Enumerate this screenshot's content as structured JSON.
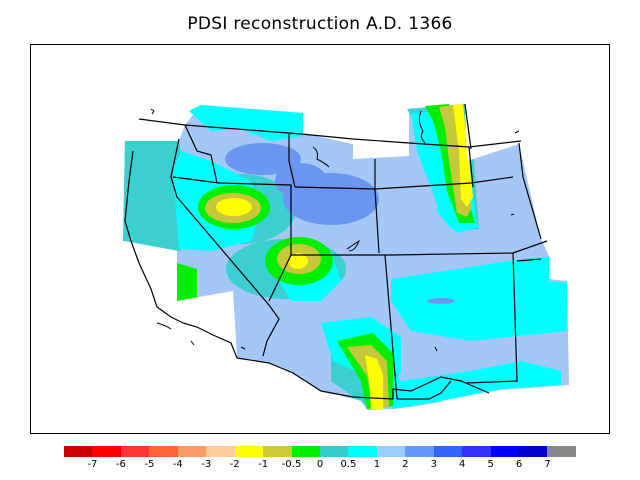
{
  "title": "PDSI reconstruction A.D. 1366",
  "legend": {
    "colors": [
      "#cc0000",
      "#ff0000",
      "#ff3333",
      "#ff6633",
      "#ff9966",
      "#ffcc99",
      "#ffff00",
      "#cccc33",
      "#00ee00",
      "#33cccc",
      "#00ffff",
      "#99ccff",
      "#6699ff",
      "#3366ff",
      "#3333ff",
      "#0000ff",
      "#0000cc",
      "#888888"
    ],
    "ticks": [
      "-7",
      "-6",
      "-5",
      "-4",
      "-3",
      "-2",
      "-1",
      "-0.5",
      "0",
      "0.5",
      "1",
      "2",
      "3",
      "4",
      "5",
      "6",
      "7"
    ]
  },
  "palette": {
    "light_blue": "#a3c7f7",
    "medium_blue": "#6a96f0",
    "cyan": "#00ffff",
    "teal": "#3ccfcf",
    "green": "#00ee00",
    "olive": "#c8c83c",
    "yellow": "#ffff00"
  }
}
